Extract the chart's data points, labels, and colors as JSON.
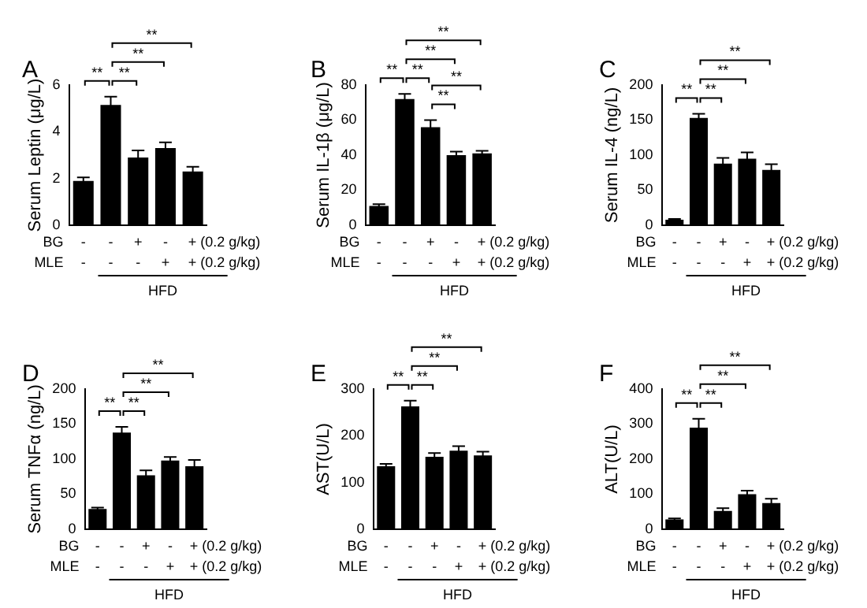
{
  "chart_data": [
    {
      "type": "bar",
      "title": "A",
      "ylabel": "Serum Leptin (μg/L)",
      "categories": [
        null,
        null,
        null,
        null,
        null
      ],
      "values": [
        1.9,
        5.15,
        2.9,
        3.3,
        2.3
      ],
      "errors": [
        0.15,
        0.35,
        0.3,
        0.25,
        0.2
      ],
      "color": "#000000",
      "ylim": [
        0,
        6
      ],
      "yticks": [
        0,
        2,
        4,
        6
      ],
      "grid": false,
      "annotations": [
        "BG",
        "-",
        "-",
        "+",
        "-",
        "+ (0.2 g/kg)",
        "MLE",
        "-",
        "-",
        "-",
        "+",
        "+ (0.2 g/kg)",
        "HFD",
        "**",
        "**",
        "**",
        "**"
      ]
    },
    {
      "type": "bar",
      "title": "B",
      "ylabel": "Serum IL-1β (μg/L)",
      "categories": [
        null,
        null,
        null,
        null,
        null
      ],
      "values": [
        11,
        72,
        56,
        40,
        41
      ],
      "errors": [
        1,
        3,
        4,
        2,
        1.5
      ],
      "color": "#000000",
      "ylim": [
        0,
        80
      ],
      "yticks": [
        0,
        20,
        40,
        60,
        80
      ],
      "grid": false,
      "annotations": [
        "BG",
        "-",
        "-",
        "+",
        "-",
        "+ (0.2 g/kg)",
        "MLE",
        "-",
        "-",
        "-",
        "+",
        "+ (0.2 g/kg)",
        "HFD",
        "**",
        "**",
        "**",
        "**",
        "**",
        "**"
      ]
    },
    {
      "type": "bar",
      "title": "C",
      "ylabel": "Serum IL-4 (ng/L)",
      "categories": [
        null,
        null,
        null,
        null,
        null
      ],
      "values": [
        8,
        153,
        88,
        95,
        79
      ],
      "errors": [
        1,
        6,
        8,
        9,
        8
      ],
      "color": "#000000",
      "ylim": [
        0,
        200
      ],
      "yticks": [
        0,
        50,
        100,
        150,
        200
      ],
      "grid": false,
      "annotations": [
        "BG",
        "-",
        "-",
        "+",
        "-",
        "+ (0.2 g/kg)",
        "MLE",
        "-",
        "-",
        "-",
        "+",
        "+ (0.2 g/kg)",
        "HFD",
        "**",
        "**",
        "**",
        "**"
      ]
    },
    {
      "type": "bar",
      "title": "D",
      "ylabel": "Serum TNFα (ng/L)",
      "categories": [
        null,
        null,
        null,
        null,
        null
      ],
      "values": [
        29,
        138,
        77,
        98,
        90
      ],
      "errors": [
        2,
        8,
        7,
        5,
        9
      ],
      "color": "#000000",
      "ylim": [
        0,
        200
      ],
      "yticks": [
        0,
        50,
        100,
        150,
        200
      ],
      "grid": false,
      "annotations": [
        "BG",
        "-",
        "-",
        "+",
        "-",
        "+ (0.2 g/kg)",
        "MLE",
        "-",
        "-",
        "-",
        "+",
        "+ (0.2 g/kg)",
        "HFD",
        "**",
        "**",
        "**",
        "**"
      ]
    },
    {
      "type": "bar",
      "title": "E",
      "ylabel": "AST(U/L)",
      "categories": [
        null,
        null,
        null,
        null,
        null
      ],
      "values": [
        135,
        263,
        155,
        168,
        158
      ],
      "errors": [
        5,
        12,
        8,
        10,
        8
      ],
      "color": "#000000",
      "ylim": [
        0,
        300
      ],
      "yticks": [
        0,
        100,
        200,
        300
      ],
      "grid": false,
      "annotations": [
        "BG",
        "-",
        "-",
        "+",
        "-",
        "+ (0.2 g/kg)",
        "MLE",
        "-",
        "-",
        "-",
        "+",
        "+ (0.2 g/kg)",
        "HFD",
        "**",
        "**",
        "**",
        "**"
      ]
    },
    {
      "type": "bar",
      "title": "F",
      "ylabel": "ALT(U/L)",
      "categories": [
        null,
        null,
        null,
        null,
        null
      ],
      "values": [
        28,
        290,
        52,
        100,
        75
      ],
      "errors": [
        3,
        25,
        8,
        10,
        12
      ],
      "color": "#000000",
      "ylim": [
        0,
        400
      ],
      "yticks": [
        0,
        100,
        200,
        300,
        400
      ],
      "grid": false,
      "annotations": [
        "BG",
        "-",
        "-",
        "+",
        "-",
        "+ (0.2 g/kg)",
        "MLE",
        "-",
        "-",
        "-",
        "+",
        "+ (0.2 g/kg)",
        "HFD",
        "**",
        "**",
        "**",
        "**"
      ]
    }
  ]
}
